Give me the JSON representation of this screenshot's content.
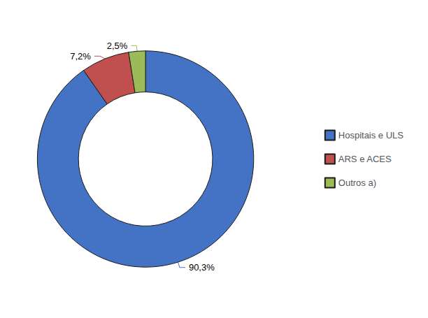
{
  "chart_data": {
    "type": "pie",
    "categories": [
      "Hospitais e ULS",
      "ARS e ACES",
      "Outros a)"
    ],
    "values": [
      90.3,
      7.2,
      2.5
    ],
    "value_labels": [
      "90,3%",
      "7,2%",
      "2,5%"
    ],
    "colors": [
      "#4472C4",
      "#C0504D",
      "#9BBB59"
    ],
    "data_labels": true,
    "legend": "right"
  }
}
